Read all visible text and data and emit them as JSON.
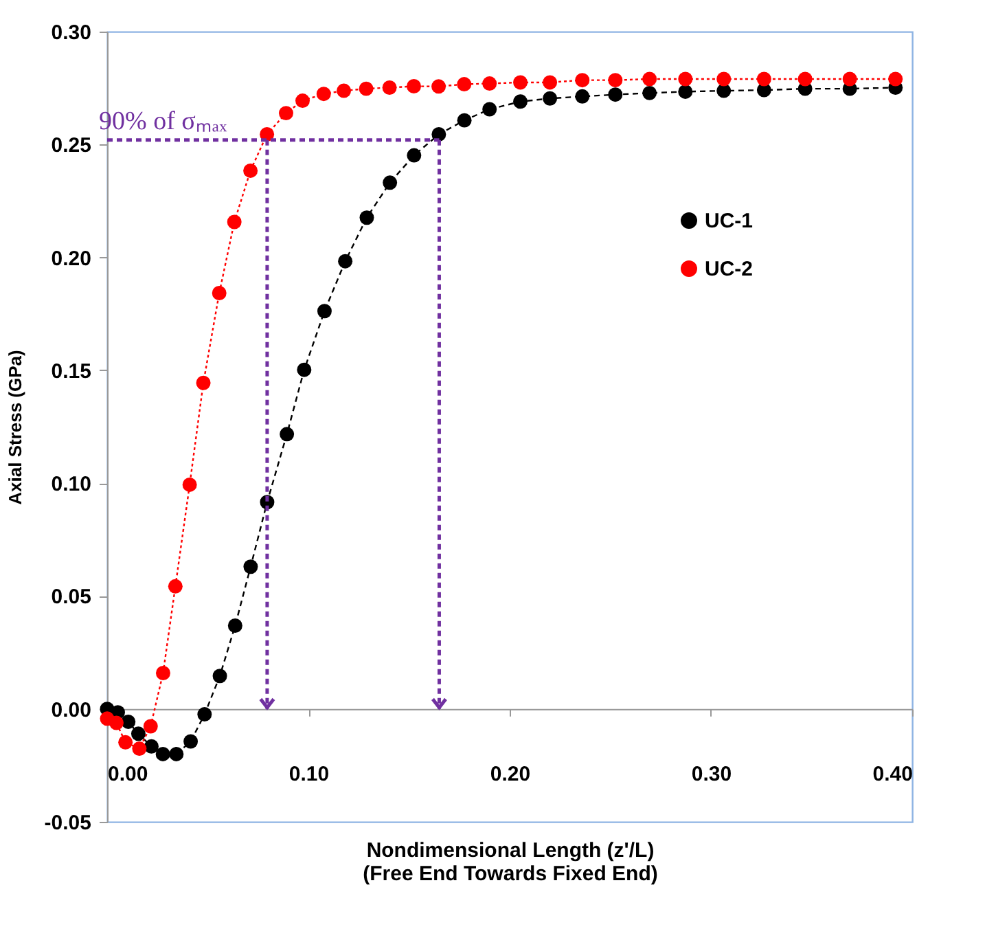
{
  "chart_data": {
    "type": "line",
    "xlabel": "Nondimensional Length (z'/L)\n(Free End Towards Fixed End)",
    "ylabel": "Axial Stress (GPa)",
    "xlim": [
      0,
      0.4
    ],
    "xticks": [
      {
        "value": 0,
        "label": "0.00"
      },
      {
        "value": 0.1,
        "label": "0.10"
      },
      {
        "value": 0.2,
        "label": "0.20"
      },
      {
        "value": 0.3,
        "label": "0.30"
      },
      {
        "value": 0.4,
        "label": "0.40"
      }
    ],
    "ylim": [
      -0.05,
      0.3
    ],
    "yticks": [
      {
        "value": -0.05,
        "label": "-0.05"
      },
      {
        "value": 0,
        "label": "0.00"
      },
      {
        "value": 0.05,
        "label": "0.05"
      },
      {
        "value": 0.1,
        "label": "0.10"
      },
      {
        "value": 0.15,
        "label": "0.15"
      },
      {
        "value": 0.2,
        "label": "0.20"
      },
      {
        "value": 0.25,
        "label": "0.25"
      },
      {
        "value": 0.3,
        "label": "0.30"
      }
    ],
    "legend": "right",
    "marker": "circle",
    "series": [
      {
        "name": "UC-1",
        "color": "#000000",
        "line_style": "dashed",
        "x": [
          0,
          0.0053,
          0.0105,
          0.0155,
          0.022,
          0.0277,
          0.0344,
          0.0415,
          0.0484,
          0.056,
          0.0636,
          0.0713,
          0.0795,
          0.0893,
          0.0979,
          0.108,
          0.1183,
          0.129,
          0.1405,
          0.1525,
          0.1648,
          0.1775,
          0.19,
          0.2053,
          0.22,
          0.2361,
          0.2525,
          0.2695,
          0.2873,
          0.3064,
          0.3264,
          0.3468,
          0.369,
          0.3917
        ],
        "values": [
          0,
          -0.0015,
          -0.0057,
          -0.011,
          -0.0166,
          -0.02,
          -0.02,
          -0.0144,
          -0.0024,
          0.0146,
          0.0369,
          0.063,
          0.0916,
          0.1217,
          0.1502,
          0.1762,
          0.1983,
          0.2176,
          0.2331,
          0.2452,
          0.2545,
          0.2607,
          0.2656,
          0.269,
          0.2704,
          0.2713,
          0.2721,
          0.2728,
          0.2734,
          0.2738,
          0.2741,
          0.2747,
          0.2747,
          0.2752
        ]
      },
      {
        "name": "UC-2",
        "color": "#ff0000",
        "line_style": "dotted",
        "x": [
          0,
          0.0046,
          0.0091,
          0.016,
          0.0216,
          0.0278,
          0.0339,
          0.041,
          0.0478,
          0.0557,
          0.0632,
          0.0712,
          0.0794,
          0.0889,
          0.0971,
          0.1076,
          0.1176,
          0.1287,
          0.1403,
          0.1524,
          0.1647,
          0.1774,
          0.19,
          0.2053,
          0.22,
          0.2361,
          0.2525,
          0.2695,
          0.2873,
          0.3064,
          0.3264,
          0.3468,
          0.369,
          0.3917
        ],
        "values": [
          -0.0043,
          -0.0062,
          -0.0148,
          -0.0176,
          -0.0077,
          0.0159,
          0.0543,
          0.0993,
          0.1444,
          0.1842,
          0.2157,
          0.2384,
          0.2545,
          0.2639,
          0.2694,
          0.2724,
          0.2738,
          0.2747,
          0.2752,
          0.2758,
          0.2757,
          0.2767,
          0.277,
          0.2775,
          0.2775,
          0.2785,
          0.2785,
          0.279,
          0.279,
          0.279,
          0.279,
          0.279,
          0.279,
          0.279
        ]
      }
    ],
    "ref_lines": [
      {
        "axis": "y",
        "value": 0.252,
        "label": "90% of σₘₐₓ",
        "color": "#7030a0",
        "line_style": "dashed"
      },
      {
        "axis": "x",
        "value": 0.0795,
        "color": "#7030a0",
        "line_style": "dashed"
      },
      {
        "axis": "x",
        "value": 0.165,
        "color": "#7030a0",
        "line_style": "dashed"
      }
    ]
  }
}
